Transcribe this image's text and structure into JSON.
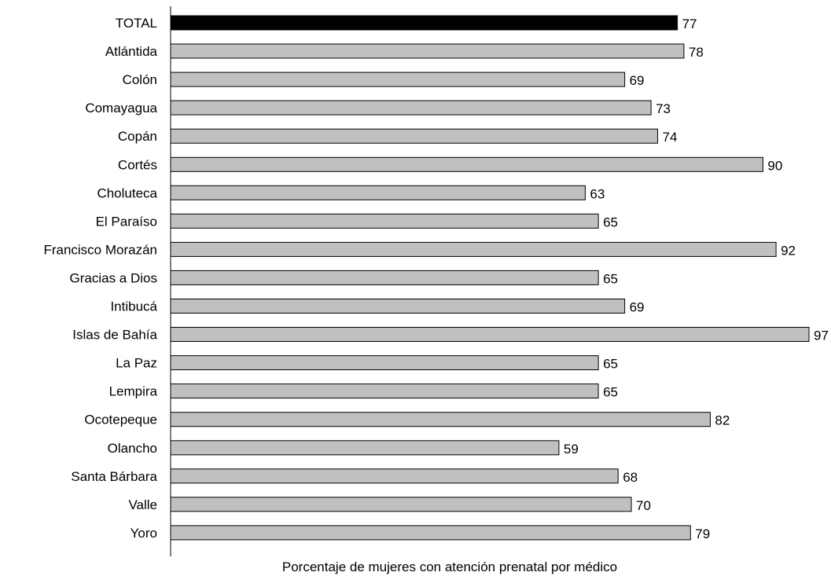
{
  "chart_data": {
    "type": "bar",
    "orientation": "horizontal",
    "categories": [
      "TOTAL",
      "Atlántida",
      "Colón",
      "Comayagua",
      "Copán",
      "Cortés",
      "Choluteca",
      "El Paraíso",
      "Francisco Morazán",
      "Gracias a Dios",
      "Intibucá",
      "Islas de Bahía",
      "La Paz",
      "Lempira",
      "Ocotepeque",
      "Olancho",
      "Santa Bárbara",
      "Valle",
      "Yoro"
    ],
    "values": [
      77,
      78,
      69,
      73,
      74,
      90,
      63,
      65,
      92,
      65,
      69,
      97,
      65,
      65,
      82,
      59,
      68,
      70,
      79
    ],
    "xlabel": "Porcentaje de mujeres con atención prenatal por médico",
    "xlim": [
      0,
      97
    ],
    "grid": false,
    "legend": "none",
    "colors": {
      "highlight": "#000000",
      "default": "#c0c0c0",
      "stroke": "#000000"
    },
    "highlight_index": 0
  }
}
